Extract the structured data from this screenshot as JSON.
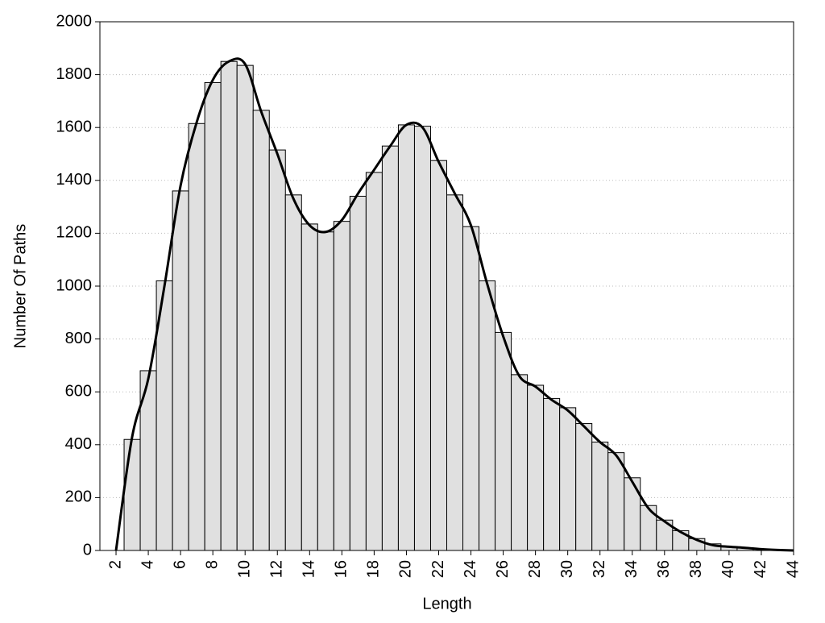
{
  "chart_data": {
    "type": "histogram",
    "xlabel": "Length",
    "ylabel": "Number Of Paths",
    "bins": [
      2.5,
      3.5,
      4.5,
      5.5,
      6.5,
      7.5,
      8.5,
      9.5,
      10.5,
      11.5,
      12.5,
      13.5,
      14.5,
      15.5,
      16.5,
      17.5,
      18.5,
      19.5,
      20.5,
      21.5,
      22.5,
      23.5,
      24.5,
      25.5,
      26.5,
      27.5,
      28.5,
      29.5,
      30.5,
      31.5,
      32.5,
      33.5,
      34.5,
      35.5,
      36.5,
      37.5,
      38.5,
      39.5,
      40.5,
      41.5,
      42.5,
      43.5
    ],
    "values": [
      420,
      680,
      1020,
      1360,
      1615,
      1770,
      1850,
      1835,
      1665,
      1515,
      1345,
      1235,
      1205,
      1245,
      1340,
      1430,
      1530,
      1610,
      1605,
      1475,
      1345,
      1225,
      1020,
      825,
      665,
      625,
      575,
      540,
      480,
      410,
      370,
      275,
      170,
      115,
      75,
      45,
      25,
      15,
      10,
      5,
      3
    ],
    "color": "#e0e0e0",
    "line": {
      "x": [
        2,
        3,
        4,
        5,
        6,
        7,
        8,
        9,
        10,
        11,
        12,
        13,
        14,
        15,
        16,
        17,
        18,
        19,
        20,
        21,
        22,
        23,
        24,
        25,
        26,
        27,
        28,
        29,
        30,
        31,
        32,
        33,
        34,
        35,
        36,
        37,
        38,
        39,
        40,
        41,
        42,
        43,
        44
      ],
      "values": [
        0,
        430,
        650,
        1000,
        1380,
        1620,
        1780,
        1850,
        1840,
        1660,
        1500,
        1330,
        1230,
        1205,
        1250,
        1350,
        1440,
        1530,
        1610,
        1600,
        1470,
        1350,
        1230,
        1010,
        810,
        660,
        620,
        570,
        530,
        470,
        410,
        360,
        260,
        160,
        110,
        70,
        40,
        20,
        14,
        10,
        5,
        2,
        0
      ],
      "color": "#000000"
    },
    "xlim": [
      1,
      44
    ],
    "ylim": [
      0,
      2000
    ],
    "xticks": [
      2,
      4,
      6,
      8,
      10,
      12,
      14,
      16,
      18,
      20,
      22,
      24,
      26,
      28,
      30,
      32,
      34,
      36,
      38,
      40,
      42,
      44
    ],
    "yticks": [
      0,
      200,
      400,
      600,
      800,
      1000,
      1200,
      1400,
      1600,
      1800,
      2000
    ],
    "grid": true
  }
}
